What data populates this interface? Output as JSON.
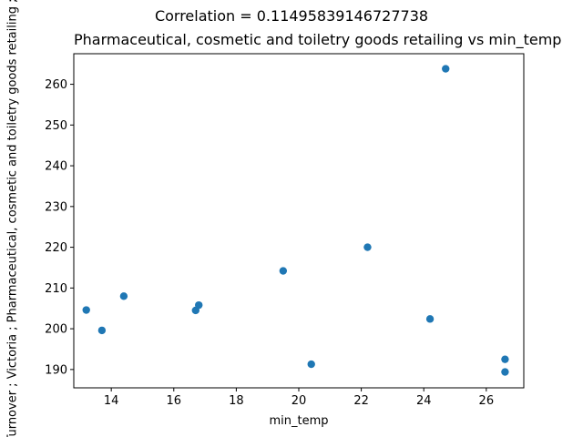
{
  "chart_data": {
    "type": "scatter",
    "suptitle": "Correlation = 0.11495839146727738",
    "title": "Pharmaceutical, cosmetic and toiletry goods retailing vs min_temp",
    "xlabel": "min_temp",
    "ylabel": "Turnover ;  Victoria ;  Pharmaceutical, cosmetic and toiletry goods retailing ;",
    "xlim": [
      12.8,
      27.2
    ],
    "ylim": [
      185.5,
      267.5
    ],
    "xticks": [
      14,
      16,
      18,
      20,
      22,
      24,
      26
    ],
    "yticks": [
      190,
      200,
      210,
      220,
      230,
      240,
      250,
      260
    ],
    "grid": false,
    "marker_color": "#1f77b4",
    "points": [
      {
        "x": 13.2,
        "y": 204.6
      },
      {
        "x": 13.7,
        "y": 199.6
      },
      {
        "x": 14.4,
        "y": 208.0
      },
      {
        "x": 16.7,
        "y": 204.5
      },
      {
        "x": 16.8,
        "y": 205.8
      },
      {
        "x": 19.5,
        "y": 214.2
      },
      {
        "x": 20.4,
        "y": 191.3
      },
      {
        "x": 22.2,
        "y": 220.0
      },
      {
        "x": 24.2,
        "y": 202.4
      },
      {
        "x": 24.7,
        "y": 263.8
      },
      {
        "x": 26.6,
        "y": 192.5
      },
      {
        "x": 26.6,
        "y": 189.4
      }
    ]
  }
}
